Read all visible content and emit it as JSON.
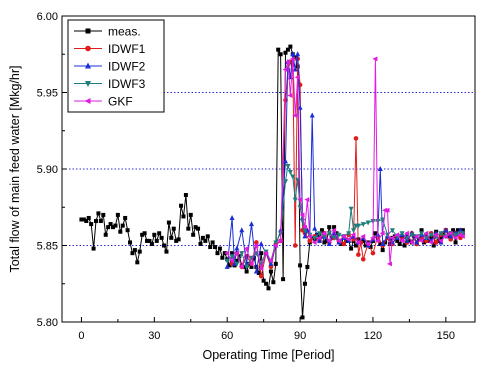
{
  "chart_data": {
    "type": "line",
    "xlabel": "Operating Time [Period]",
    "ylabel": "Total flow of main feed water [Mkg/hr]",
    "xlim": [
      -8,
      162
    ],
    "ylim": [
      5.8,
      6.0
    ],
    "x_ticks": [
      0,
      30,
      60,
      90,
      120,
      150
    ],
    "x_tick_labels": [
      "0",
      "30",
      "60",
      "90",
      "120",
      "150"
    ],
    "y_ticks": [
      5.8,
      5.85,
      5.9,
      5.95,
      6.0
    ],
    "y_tick_labels": [
      "5.80",
      "5.85",
      "5.90",
      "5.95",
      "6.00"
    ],
    "reference_lines": [
      5.85,
      5.9,
      5.95
    ],
    "reference_line_color": "#2b2bd6",
    "grid": false,
    "legend_position": "top-left",
    "series": [
      {
        "name": "meas.",
        "color": "#000000",
        "marker": "square",
        "x": [
          0,
          1,
          2,
          3,
          4,
          5,
          6,
          7,
          8,
          9,
          10,
          11,
          12,
          13,
          14,
          15,
          16,
          17,
          18,
          19,
          20,
          21,
          22,
          23,
          24,
          25,
          26,
          27,
          28,
          29,
          30,
          31,
          32,
          33,
          34,
          35,
          36,
          37,
          38,
          39,
          40,
          41,
          42,
          43,
          44,
          45,
          46,
          47,
          48,
          49,
          50,
          51,
          52,
          53,
          54,
          55,
          56,
          57,
          58,
          59,
          60,
          61,
          62,
          63,
          64,
          65,
          66,
          67,
          68,
          69,
          70,
          71,
          72,
          73,
          74,
          75,
          76,
          77,
          78,
          79,
          80,
          81,
          82,
          83,
          84,
          85,
          86,
          87,
          88,
          89,
          90,
          91,
          92,
          93,
          94,
          95,
          96,
          97,
          98,
          99,
          100,
          101,
          102,
          103,
          104,
          105,
          106,
          107,
          108,
          109,
          110,
          111,
          112,
          113,
          114,
          115,
          116,
          117,
          118,
          119,
          120,
          121,
          122,
          123,
          124,
          125,
          126,
          127,
          128,
          129,
          130,
          131,
          132,
          133,
          134,
          135,
          136,
          137,
          138,
          139,
          140,
          141,
          142,
          143,
          144,
          145,
          146,
          147,
          148,
          149,
          150,
          151,
          152,
          153,
          154,
          155,
          156,
          157
        ],
        "y": [
          5.867,
          5.867,
          5.866,
          5.868,
          5.864,
          5.848,
          5.866,
          5.871,
          5.866,
          5.87,
          5.857,
          5.862,
          5.864,
          5.862,
          5.863,
          5.87,
          5.859,
          5.863,
          5.868,
          5.86,
          5.852,
          5.845,
          5.847,
          5.839,
          5.846,
          5.857,
          5.858,
          5.853,
          5.853,
          5.851,
          5.857,
          5.853,
          5.858,
          5.855,
          5.85,
          5.846,
          5.865,
          5.855,
          5.861,
          5.853,
          5.854,
          5.876,
          5.869,
          5.883,
          5.861,
          5.87,
          5.857,
          5.862,
          5.861,
          5.851,
          5.855,
          5.853,
          5.856,
          5.849,
          5.852,
          5.849,
          5.845,
          5.848,
          5.842,
          5.845,
          5.841,
          5.837,
          5.845,
          5.837,
          5.84,
          5.843,
          5.837,
          5.836,
          5.833,
          5.838,
          5.836,
          5.842,
          5.836,
          5.832,
          5.845,
          5.827,
          5.825,
          5.822,
          5.833,
          5.826,
          5.838,
          5.978,
          5.975,
          5.828,
          5.976,
          5.978,
          5.98,
          5.975,
          5.973,
          5.967,
          5.837,
          5.803,
          5.825,
          5.836,
          5.852,
          5.855,
          5.854,
          5.857,
          5.855,
          5.86,
          5.852,
          5.853,
          5.862,
          5.855,
          5.862,
          5.858,
          5.853,
          5.851,
          5.856,
          5.853,
          5.853,
          5.848,
          5.853,
          5.85,
          5.854,
          5.852,
          5.853,
          5.85,
          5.852,
          5.849,
          5.853,
          5.858,
          5.855,
          5.851,
          5.847,
          5.852,
          5.855,
          5.851,
          5.855,
          5.856,
          5.853,
          5.851,
          5.855,
          5.85,
          5.856,
          5.853,
          5.852,
          5.856,
          5.851,
          5.854,
          5.86,
          5.852,
          5.857,
          5.853,
          5.855,
          5.85,
          5.859,
          5.853,
          5.855,
          5.858,
          5.86,
          5.856,
          5.858,
          5.86,
          5.852,
          5.86,
          5.857,
          5.86
        ]
      },
      {
        "name": "IDWF1",
        "color": "#e11b1b",
        "marker": "circle",
        "x": [
          62,
          64,
          66,
          68,
          70,
          72,
          74,
          76,
          78,
          80,
          82,
          84,
          85,
          86,
          87,
          88,
          89,
          90,
          91,
          92,
          94,
          96,
          98,
          100,
          102,
          104,
          106,
          108,
          110,
          112,
          113,
          114,
          115,
          116,
          118,
          120,
          122,
          124,
          126,
          128,
          130,
          132,
          134,
          136,
          138,
          140,
          142,
          144,
          146,
          148,
          150,
          152,
          154,
          156,
          157
        ],
        "y": [
          5.838,
          5.845,
          5.836,
          5.843,
          5.838,
          5.852,
          5.83,
          5.845,
          5.836,
          5.851,
          5.853,
          5.945,
          5.965,
          5.97,
          5.968,
          5.85,
          5.972,
          5.955,
          5.86,
          5.858,
          5.853,
          5.856,
          5.853,
          5.858,
          5.852,
          5.855,
          5.853,
          5.851,
          5.857,
          5.854,
          5.92,
          5.844,
          5.852,
          5.841,
          5.851,
          5.845,
          5.856,
          5.85,
          5.855,
          5.851,
          5.856,
          5.854,
          5.852,
          5.858,
          5.851,
          5.855,
          5.853,
          5.858,
          5.852,
          5.857,
          5.86,
          5.854,
          5.858,
          5.855,
          5.858
        ]
      },
      {
        "name": "IDWF2",
        "color": "#1a2ed6",
        "marker": "triangle-up",
        "x": [
          60,
          62,
          63,
          64,
          66,
          68,
          70,
          72,
          74,
          76,
          78,
          80,
          82,
          84,
          85,
          86,
          87,
          88,
          89,
          90,
          91,
          92,
          93,
          94,
          95,
          96,
          98,
          100,
          102,
          104,
          106,
          108,
          110,
          112,
          114,
          116,
          118,
          120,
          122,
          123,
          124,
          126,
          128,
          130,
          132,
          134,
          136,
          138,
          140,
          142,
          144,
          146,
          148,
          150,
          152,
          154,
          156,
          157
        ],
        "y": [
          5.836,
          5.868,
          5.838,
          5.848,
          5.86,
          5.838,
          5.864,
          5.833,
          5.851,
          5.845,
          5.838,
          5.85,
          5.86,
          5.905,
          5.97,
          5.96,
          5.975,
          5.965,
          5.975,
          5.94,
          5.868,
          5.856,
          5.86,
          5.857,
          5.935,
          5.861,
          5.853,
          5.856,
          5.851,
          5.858,
          5.852,
          5.855,
          5.853,
          5.856,
          5.852,
          5.855,
          5.85,
          5.854,
          5.857,
          5.9,
          5.851,
          5.856,
          5.852,
          5.855,
          5.857,
          5.853,
          5.858,
          5.852,
          5.857,
          5.855,
          5.853,
          5.858,
          5.852,
          5.86,
          5.856,
          5.858,
          5.86,
          5.858
        ]
      },
      {
        "name": "IDWF3",
        "color": "#1e7d7d",
        "marker": "triangle-down",
        "x": [
          60,
          62,
          64,
          66,
          68,
          70,
          72,
          74,
          76,
          78,
          80,
          82,
          84,
          85,
          86,
          87,
          88,
          89,
          90,
          91,
          92,
          94,
          96,
          98,
          100,
          102,
          104,
          106,
          108,
          110,
          111,
          112,
          113,
          114,
          116,
          118,
          120,
          122,
          124,
          126,
          128,
          130,
          132,
          134,
          136,
          138,
          140,
          142,
          144,
          146,
          148,
          150,
          152,
          154,
          156,
          157
        ],
        "y": [
          5.84,
          5.843,
          5.838,
          5.845,
          5.836,
          5.842,
          5.845,
          5.838,
          5.846,
          5.84,
          5.852,
          5.858,
          5.892,
          5.902,
          5.898,
          5.895,
          5.88,
          5.893,
          5.875,
          5.866,
          5.86,
          5.857,
          5.855,
          5.858,
          5.856,
          5.858,
          5.855,
          5.857,
          5.856,
          5.858,
          5.874,
          5.86,
          5.863,
          5.863,
          5.864,
          5.865,
          5.866,
          5.866,
          5.867,
          5.857,
          5.86,
          5.856,
          5.858,
          5.855,
          5.857,
          5.856,
          5.858,
          5.855,
          5.857,
          5.856,
          5.858,
          5.856,
          5.858,
          5.857,
          5.858,
          5.858
        ]
      },
      {
        "name": "GKF",
        "color": "#e21be0",
        "marker": "triangle-left",
        "x": [
          60,
          62,
          64,
          66,
          68,
          70,
          72,
          74,
          76,
          78,
          80,
          82,
          84,
          85,
          86,
          87,
          88,
          89,
          90,
          91,
          92,
          93,
          94,
          96,
          98,
          100,
          102,
          104,
          106,
          108,
          110,
          112,
          114,
          116,
          118,
          120,
          121,
          122,
          124,
          125,
          126,
          127,
          128,
          130,
          132,
          134,
          136,
          138,
          140,
          142,
          144,
          146,
          148,
          150,
          152,
          154,
          156,
          157
        ],
        "y": [
          5.845,
          5.84,
          5.845,
          5.836,
          5.848,
          5.838,
          5.85,
          5.835,
          5.845,
          5.84,
          5.85,
          5.853,
          5.965,
          5.97,
          5.948,
          5.972,
          5.935,
          5.96,
          5.88,
          5.87,
          5.862,
          5.88,
          5.856,
          5.852,
          5.855,
          5.858,
          5.853,
          5.86,
          5.853,
          5.856,
          5.854,
          5.857,
          5.852,
          5.856,
          5.851,
          5.855,
          5.972,
          5.853,
          5.858,
          5.873,
          5.873,
          5.838,
          5.855,
          5.857,
          5.853,
          5.858,
          5.852,
          5.856,
          5.853,
          5.858,
          5.852,
          5.857,
          5.853,
          5.856,
          5.858,
          5.855,
          5.857,
          5.856
        ]
      }
    ]
  }
}
